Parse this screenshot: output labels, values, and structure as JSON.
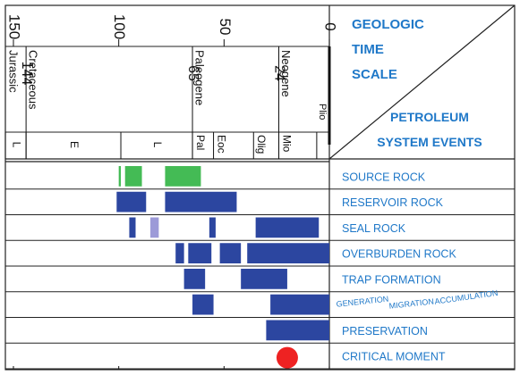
{
  "chart_data": {
    "type": "gantt",
    "x_axis": {
      "ticks": [
        150,
        100,
        50,
        0
      ],
      "tick_labels": [
        "150",
        "100",
        "50",
        "0"
      ],
      "domain_ma": [
        155,
        0
      ],
      "reversed": true
    },
    "boundaries": [
      {
        "ma": 144,
        "label": "144"
      },
      {
        "ma": 65,
        "label": "65"
      },
      {
        "ma": 24,
        "label": "24"
      }
    ],
    "periods": [
      {
        "name": "Jurassic",
        "start": 155,
        "end": 144
      },
      {
        "name": "Cretaceous",
        "start": 144,
        "end": 65
      },
      {
        "name": "Paleogene",
        "start": 65,
        "end": 24
      },
      {
        "name": "Neogene",
        "start": 24,
        "end": 2
      },
      {
        "name": "Plio",
        "start": 2,
        "end": 0
      }
    ],
    "epochs": [
      {
        "name": "L",
        "start": 155,
        "end": 144
      },
      {
        "name": "E",
        "start": 144,
        "end": 99
      },
      {
        "name": "L",
        "start": 99,
        "end": 65
      },
      {
        "name": "Pal",
        "start": 65,
        "end": 55
      },
      {
        "name": "Eoc",
        "start": 55,
        "end": 36
      },
      {
        "name": "Olig",
        "start": 36,
        "end": 24
      },
      {
        "name": "Mio",
        "start": 24,
        "end": 6
      },
      {
        "name": "",
        "start": 6,
        "end": 0
      }
    ],
    "title_lines": [
      "GEOLOGIC",
      "TIME",
      "SCALE"
    ],
    "subtitle_lines": [
      "PETROLEUM",
      "SYSTEM EVENTS"
    ],
    "rows": [
      {
        "label": "SOURCE ROCK",
        "bars": [
          {
            "start": 100,
            "end": 99,
            "color": "#44bb55"
          },
          {
            "start": 97,
            "end": 89,
            "color": "#44bb55"
          },
          {
            "start": 78,
            "end": 61,
            "color": "#44bb55"
          }
        ]
      },
      {
        "label": "RESERVOIR ROCK",
        "bars": [
          {
            "start": 101,
            "end": 87,
            "color": "#2c46a0"
          },
          {
            "start": 78,
            "end": 44,
            "color": "#2c46a0"
          }
        ]
      },
      {
        "label": "SEAL ROCK",
        "bars": [
          {
            "start": 95,
            "end": 92,
            "color": "#2c46a0"
          },
          {
            "start": 85,
            "end": 81,
            "color": "#9c9ad8"
          },
          {
            "start": 57,
            "end": 54,
            "color": "#2c46a0"
          },
          {
            "start": 35,
            "end": 5,
            "color": "#2c46a0"
          }
        ]
      },
      {
        "label": "OVERBURDEN ROCK",
        "bars": [
          {
            "start": 73,
            "end": 69,
            "color": "#2c46a0"
          },
          {
            "start": 67,
            "end": 56,
            "color": "#2c46a0"
          },
          {
            "start": 52,
            "end": 42,
            "color": "#2c46a0"
          },
          {
            "start": 39,
            "end": 0,
            "color": "#2c46a0"
          }
        ]
      },
      {
        "label": "TRAP FORMATION",
        "bars": [
          {
            "start": 69,
            "end": 59,
            "color": "#2c46a0"
          },
          {
            "start": 42,
            "end": 20,
            "color": "#2c46a0"
          }
        ]
      },
      {
        "label": "",
        "label_words": [
          "GENERATION",
          "MIGRATION",
          "ACCUMULATION"
        ],
        "bars": [
          {
            "start": 65,
            "end": 55,
            "color": "#2c46a0"
          },
          {
            "start": 28,
            "end": 0,
            "color": "#2c46a0"
          }
        ]
      },
      {
        "label": "PRESERVATION",
        "bars": [
          {
            "start": 30,
            "end": 0,
            "color": "#2c46a0"
          }
        ]
      },
      {
        "label": "CRITICAL MOMENT",
        "bars": [],
        "marker": {
          "ma": 20,
          "color": "#ee2222"
        }
      }
    ],
    "colors": {
      "label_blue": "#1f78c8",
      "bar_blue": "#2c46a0",
      "green": "#44bb55",
      "red": "#ee2222"
    }
  }
}
